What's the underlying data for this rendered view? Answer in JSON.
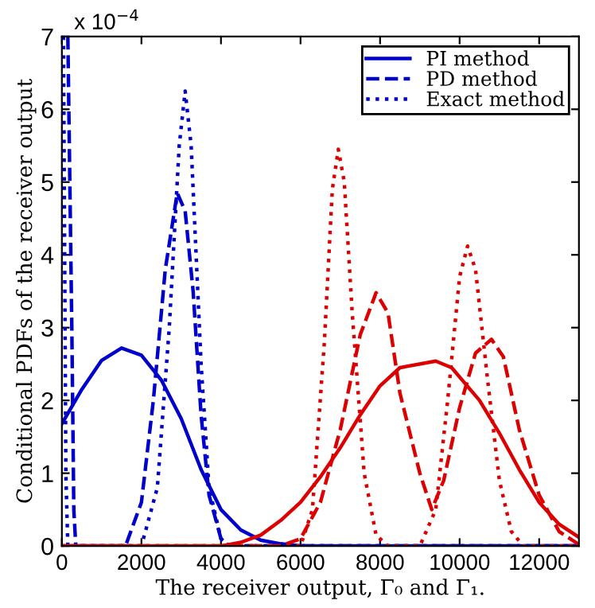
{
  "chart_data": {
    "type": "line",
    "xlabel": "The receiver output, Γ₀ and Γ₁.",
    "ylabel": "Conditional PDFs of the receiver output",
    "annotations": [
      "x 10$^{−4}$"
    ],
    "xlim": [
      0,
      13000
    ],
    "ylim": [
      0,
      7
    ],
    "xticks": [
      0,
      2000,
      4000,
      6000,
      8000,
      10000,
      12000
    ],
    "yticks": [
      0,
      1,
      2,
      3,
      4,
      5,
      6,
      7
    ],
    "grid": false,
    "legend": "top right",
    "marker": "none",
    "series": [
      {
        "name": "PI method",
        "color": "#0000cc",
        "line_style": "solid",
        "x": [
          0,
          500,
          1000,
          1500,
          2000,
          2500,
          3000,
          3500,
          4000,
          4500,
          5000,
          5500,
          6000,
          13000
        ],
        "values": [
          1.68,
          2.15,
          2.55,
          2.72,
          2.62,
          2.28,
          1.75,
          1.05,
          0.5,
          0.22,
          0.08,
          0.03,
          0,
          0
        ]
      },
      {
        "name": "PD method",
        "color": "#0000cc",
        "line_style": "dashed",
        "x": [
          150,
          250,
          300,
          350,
          1600,
          2000,
          2300,
          2600,
          2900,
          3100,
          3300,
          3500,
          3700,
          4000,
          4200,
          13000
        ],
        "values": [
          7,
          3,
          0.5,
          0,
          0,
          0.6,
          2,
          3.8,
          4.85,
          4.6,
          3.5,
          1.8,
          0.7,
          0.1,
          0,
          0
        ]
      },
      {
        "name": "Exact method",
        "color": "#0000cc",
        "line_style": "dotted",
        "x": [
          40,
          100,
          150,
          2000,
          2400,
          2700,
          2950,
          3100,
          3250,
          3500,
          3700,
          4000,
          4200,
          13000
        ],
        "values": [
          7,
          1,
          0,
          0,
          0.8,
          3,
          5.5,
          6.25,
          5.5,
          2.5,
          0.8,
          0.1,
          0,
          0
        ]
      },
      {
        "color": "#dd0000",
        "line_style": "solid",
        "x": [
          0,
          4000,
          4500,
          5000,
          5500,
          6000,
          6500,
          7000,
          7500,
          8000,
          8500,
          9400,
          9800,
          10500,
          11000,
          11500,
          12000,
          12500,
          13000
        ],
        "values": [
          0,
          0,
          0.05,
          0.15,
          0.35,
          0.6,
          0.95,
          1.35,
          1.8,
          2.2,
          2.45,
          2.54,
          2.45,
          2.0,
          1.55,
          1.05,
          0.6,
          0.3,
          0.12
        ]
      },
      {
        "color": "#dd0000",
        "line_style": "dashed",
        "x": [
          0,
          5500,
          6000,
          6500,
          7000,
          7500,
          7900,
          8200,
          8500,
          9000,
          9300,
          9600,
          10000,
          10400,
          10800,
          11100,
          11500,
          12000,
          12500,
          13000
        ],
        "values": [
          0,
          0,
          0.1,
          0.6,
          1.6,
          2.9,
          3.48,
          3.2,
          2.1,
          1.0,
          0.5,
          0.9,
          1.9,
          2.65,
          2.84,
          2.6,
          1.6,
          0.7,
          0.2,
          0.02
        ]
      },
      {
        "color": "#dd0000",
        "line_style": "dotted",
        "x": [
          0,
          6000,
          6300,
          6600,
          6800,
          6950,
          7100,
          7300,
          7600,
          7900,
          8200,
          9000,
          9400,
          9700,
          10000,
          10200,
          10400,
          10700,
          11000,
          11300,
          11600,
          13000
        ],
        "values": [
          0,
          0,
          0.5,
          2.8,
          4.9,
          5.45,
          5,
          3.2,
          1,
          0.15,
          0,
          0,
          0.5,
          2,
          3.7,
          4.12,
          3.8,
          2.3,
          0.9,
          0.2,
          0,
          0
        ]
      }
    ]
  }
}
